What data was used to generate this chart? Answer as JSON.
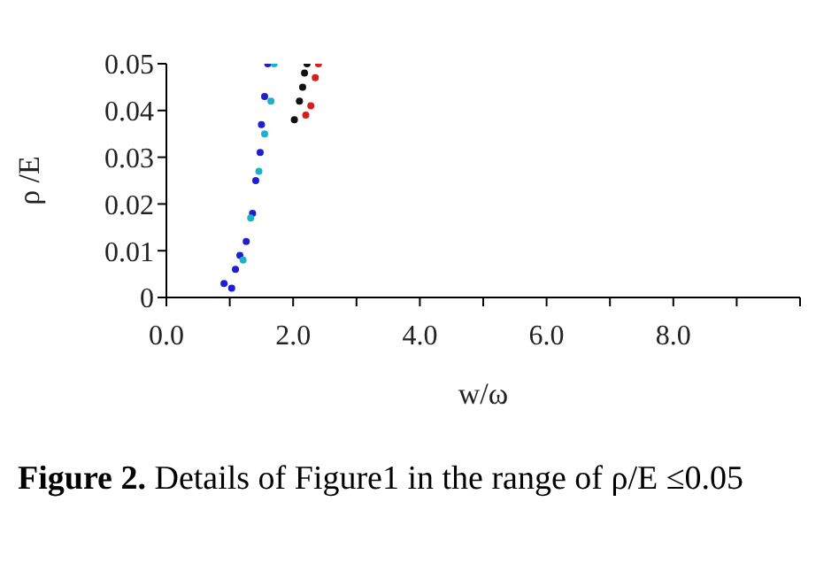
{
  "chart_data": {
    "type": "scatter",
    "xlabel": "w/ω",
    "ylabel": "ρ /E",
    "annotations": [
      "Figure 2. Details of Figure1 in the range of ρ/E ≤0.05"
    ],
    "xlim": [
      0,
      10
    ],
    "ylim": [
      0,
      0.05
    ],
    "xticks": [
      {
        "value": 0,
        "label": "0.0"
      },
      {
        "value": 1,
        "label": null
      },
      {
        "value": 2,
        "label": "2.0"
      },
      {
        "value": 3,
        "label": null
      },
      {
        "value": 4,
        "label": "4.0"
      },
      {
        "value": 5,
        "label": null
      },
      {
        "value": 6,
        "label": "6.0"
      },
      {
        "value": 7,
        "label": null
      },
      {
        "value": 8,
        "label": "8.0"
      },
      {
        "value": 9,
        "label": null
      },
      {
        "value": 10,
        "label": null
      }
    ],
    "yticks": [
      0,
      0.01,
      0.02,
      0.03,
      0.04,
      0.05
    ],
    "marker": "circle",
    "series": [
      {
        "color": "#1f1fd0",
        "x": [
          0.91,
          1.03,
          1.09,
          1.16,
          1.26,
          1.36,
          1.41,
          1.48,
          1.5,
          1.55,
          1.6
        ],
        "values": [
          0.003,
          0.002,
          0.006,
          0.009,
          0.012,
          0.018,
          0.025,
          0.031,
          0.037,
          0.043,
          0.05
        ]
      },
      {
        "color": "#20b0c8",
        "x": [
          1.21,
          1.33,
          1.46,
          1.55,
          1.65,
          1.7
        ],
        "values": [
          0.008,
          0.017,
          0.027,
          0.035,
          0.042,
          0.05
        ]
      },
      {
        "color": "#111111",
        "x": [
          2.02,
          2.1,
          2.15,
          2.18,
          2.22
        ],
        "values": [
          0.038,
          0.042,
          0.045,
          0.048,
          0.05
        ]
      },
      {
        "color": "#d02020",
        "x": [
          2.2,
          2.28,
          2.35,
          2.4
        ],
        "values": [
          0.039,
          0.041,
          0.047,
          0.05
        ]
      }
    ]
  }
}
